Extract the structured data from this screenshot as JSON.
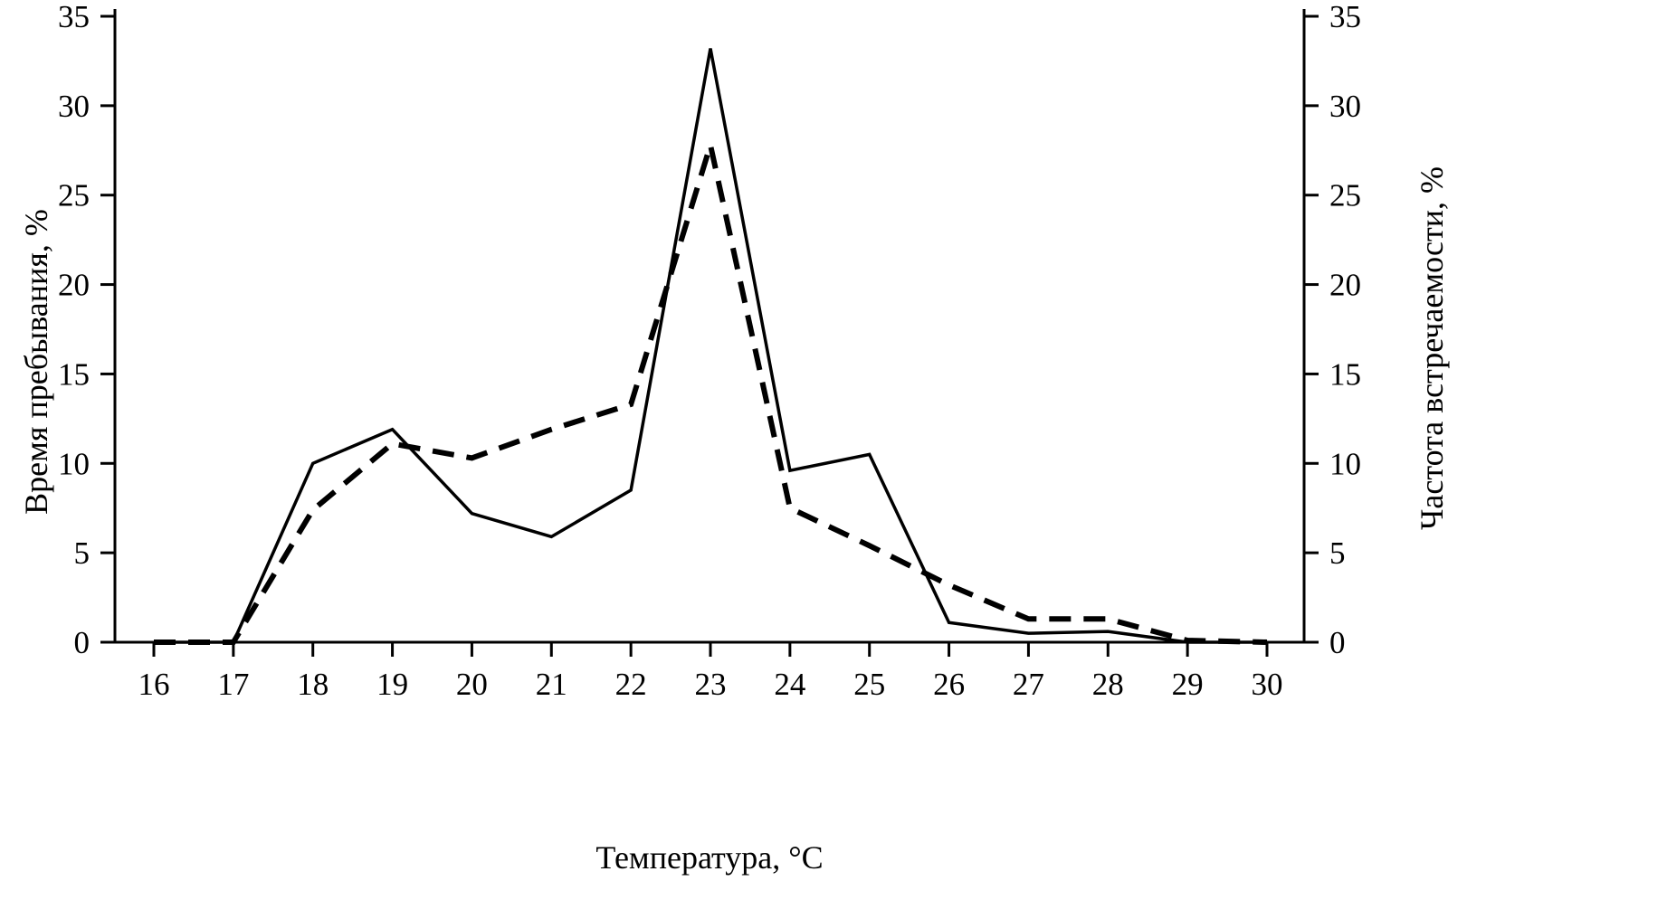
{
  "chart_data": {
    "type": "line",
    "title": "",
    "xlabel": "Температура, °С",
    "ylabel_left": "Время пребывания, %",
    "ylabel_right": "Частота встречаемости, %",
    "x": [
      16,
      17,
      18,
      19,
      20,
      21,
      22,
      23,
      24,
      25,
      26,
      27,
      28,
      29,
      30
    ],
    "x_tick_labels": [
      "16",
      "17",
      "18",
      "19",
      "20",
      "21",
      "22",
      "23",
      "24",
      "25",
      "26",
      "27",
      "28",
      "29",
      "30"
    ],
    "y_ticks": [
      0,
      5,
      10,
      15,
      20,
      25,
      30,
      35
    ],
    "ylim": [
      0,
      35
    ],
    "grid": false,
    "legend": "none",
    "axis_color": "#000000",
    "series": [
      {
        "name": "Время пребывания, %",
        "line_style": "solid",
        "color": "#000000",
        "values": [
          0,
          0,
          10.0,
          11.9,
          7.2,
          5.9,
          8.5,
          33.2,
          9.6,
          10.5,
          1.1,
          0.5,
          0.6,
          0,
          0
        ]
      },
      {
        "name": "Частота встречаемости, %",
        "line_style": "dashed",
        "color": "#000000",
        "values": [
          0,
          0,
          7.4,
          11.1,
          10.3,
          11.9,
          13.3,
          27.8,
          7.5,
          5.4,
          3.2,
          1.3,
          1.3,
          0.1,
          0
        ]
      }
    ]
  }
}
